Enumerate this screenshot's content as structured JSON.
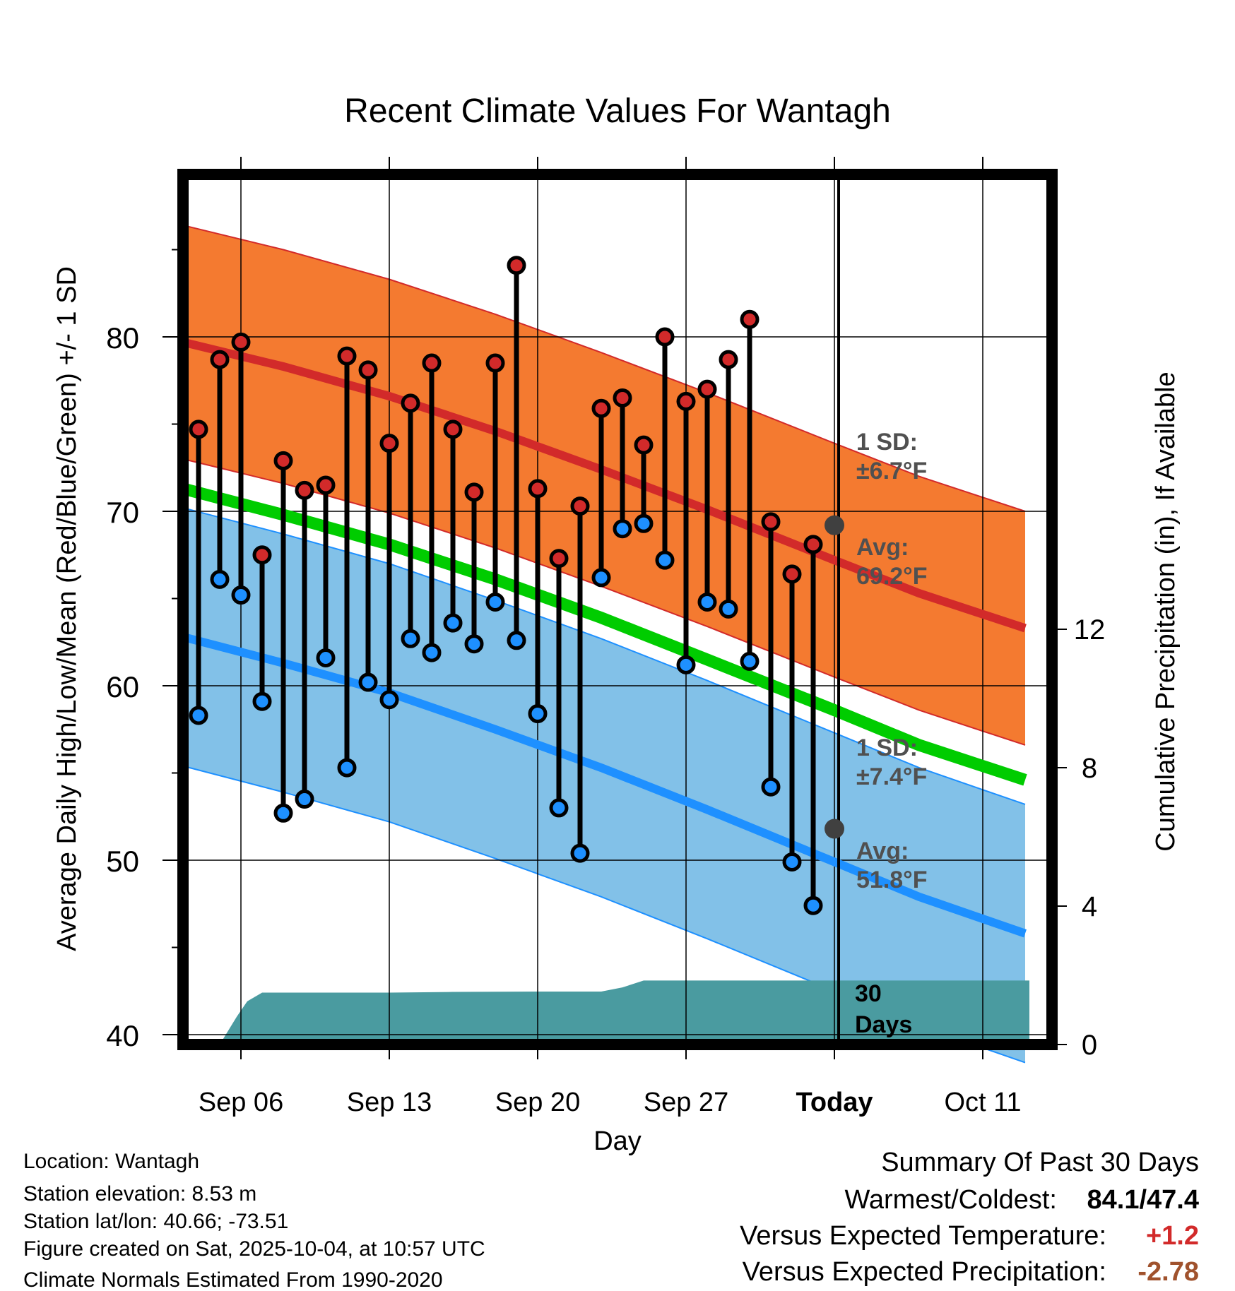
{
  "chart_data": {
    "type": "line",
    "title": "Recent Climate Values For Wantagh",
    "xlabel": "Day",
    "ylabel": "Average Daily High/Low/Mean (Red/Blue/Green) +/- 1 SD",
    "y2label": "Cumulative Precipitation (in), If Available",
    "ylim": [
      40,
      90
    ],
    "y2lim": [
      0,
      25
    ],
    "xlim": [
      0,
      40.2
    ],
    "grid": true,
    "x_ticks": [
      {
        "x": 3,
        "label": "Sep 06"
      },
      {
        "x": 10,
        "label": "Sep 13"
      },
      {
        "x": 17,
        "label": "Sep 20"
      },
      {
        "x": 24,
        "label": "Sep 27"
      },
      {
        "x": 31,
        "label": "Today"
      },
      {
        "x": 38,
        "label": "Oct 11"
      }
    ],
    "y_ticks": [
      40,
      50,
      60,
      70,
      80
    ],
    "y2_ticks": [
      0,
      4,
      8,
      12
    ],
    "today_x": 31,
    "normals": {
      "x": [
        0,
        5,
        10,
        15,
        20,
        25,
        31,
        35,
        40
      ],
      "high_mean": [
        79.7,
        78.3,
        76.6,
        74.6,
        72.4,
        70.1,
        67.2,
        65.3,
        63.3
      ],
      "high_upper": [
        86.4,
        85.0,
        83.3,
        81.3,
        79.1,
        76.8,
        73.9,
        72.0,
        70.0
      ],
      "high_lower": [
        73.0,
        71.6,
        69.9,
        67.9,
        65.7,
        63.4,
        60.5,
        58.6,
        56.6
      ],
      "low_mean": [
        62.8,
        61.3,
        59.6,
        57.5,
        55.3,
        52.9,
        49.9,
        47.9,
        45.8
      ],
      "low_upper": [
        70.2,
        68.7,
        67.0,
        64.9,
        62.7,
        60.3,
        57.3,
        55.3,
        53.2
      ],
      "low_lower": [
        55.4,
        53.9,
        52.2,
        50.1,
        47.9,
        45.5,
        42.5,
        40.5,
        38.4
      ],
      "mean": [
        71.3,
        69.8,
        68.1,
        66.1,
        63.9,
        61.5,
        58.6,
        56.6,
        54.6
      ]
    },
    "series": [
      {
        "name": "Daily High",
        "color": "#d22a2a",
        "x": [
          1,
          2,
          3,
          4,
          5,
          6,
          7,
          8,
          9,
          10,
          11,
          12,
          13,
          14,
          15,
          16,
          17,
          18,
          19,
          20,
          21,
          22,
          23,
          24,
          25,
          26,
          27,
          28,
          29,
          30
        ],
        "values": [
          74.7,
          78.7,
          79.7,
          67.5,
          72.9,
          71.2,
          71.5,
          78.9,
          78.1,
          73.9,
          76.2,
          78.5,
          74.7,
          71.1,
          78.5,
          84.1,
          71.3,
          67.3,
          70.3,
          75.9,
          76.5,
          73.8,
          80.0,
          76.3,
          77.0,
          78.7,
          81.0,
          69.4,
          66.4,
          68.1
        ]
      },
      {
        "name": "Daily Low",
        "color": "#1e90ff",
        "x": [
          1,
          2,
          3,
          4,
          5,
          6,
          7,
          8,
          9,
          10,
          11,
          12,
          13,
          14,
          15,
          16,
          17,
          18,
          19,
          20,
          21,
          22,
          23,
          24,
          25,
          26,
          27,
          28,
          29,
          30
        ],
        "values": [
          58.3,
          66.1,
          65.2,
          59.1,
          52.7,
          53.5,
          61.6,
          55.3,
          60.2,
          59.2,
          62.7,
          61.9,
          63.6,
          62.4,
          64.8,
          62.6,
          58.4,
          53.0,
          50.4,
          66.2,
          69.0,
          69.3,
          67.2,
          61.2,
          64.8,
          64.4,
          61.4,
          54.2,
          49.9,
          47.4
        ]
      },
      {
        "name": "Cumulative Precipitation",
        "color": "#4a9ba0",
        "x": [
          2,
          2.8,
          3.3,
          4,
          5,
          6,
          10,
          13,
          17,
          20,
          21,
          22,
          31,
          40.2
        ],
        "values": [
          0,
          0.8,
          1.25,
          1.5,
          1.5,
          1.5,
          1.5,
          1.52,
          1.53,
          1.53,
          1.65,
          1.85,
          1.85,
          1.85
        ]
      }
    ],
    "annotations": {
      "high_sd": {
        "line1": "1 SD:",
        "line2": "±6.7°F"
      },
      "high_avg": {
        "line1": "Avg:",
        "line2": "69.2°F",
        "value": 69.2
      },
      "low_sd": {
        "line1": "1 SD:",
        "line2": "±7.4°F"
      },
      "low_avg": {
        "line1": "Avg:",
        "line2": "51.8°F",
        "value": 51.8
      },
      "days": {
        "line1": "30",
        "line2": "Days"
      }
    }
  },
  "info": {
    "location": "Location: Wantagh",
    "elevation": "Station elevation: 8.53 m",
    "latlon": "Station lat/lon: 40.66; -73.51",
    "created": "Figure created on Sat, 2025-10-04, at 10:57 UTC",
    "normals": "Climate Normals Estimated From 1990-2020"
  },
  "summary": {
    "title": "Summary Of Past 30 Days",
    "warm_cold_label": "Warmest/Coldest:",
    "warm_cold_value": "84.1/47.4",
    "temp_label": "Versus Expected Temperature:",
    "temp_value": "+1.2",
    "temp_color": "#d22a2a",
    "precip_label": "Versus Expected Precipitation:",
    "precip_value": "-2.78",
    "precip_color": "#a0522d"
  },
  "colors": {
    "high_band": "#f47a30",
    "high_line": "#d22a2a",
    "low_band": "#82c1e8",
    "low_line": "#1e90ff",
    "mean_line": "#00cc00",
    "precip_fill": "#4a9ba0",
    "avg_marker": "#404040",
    "annotation_text": "#505050"
  }
}
